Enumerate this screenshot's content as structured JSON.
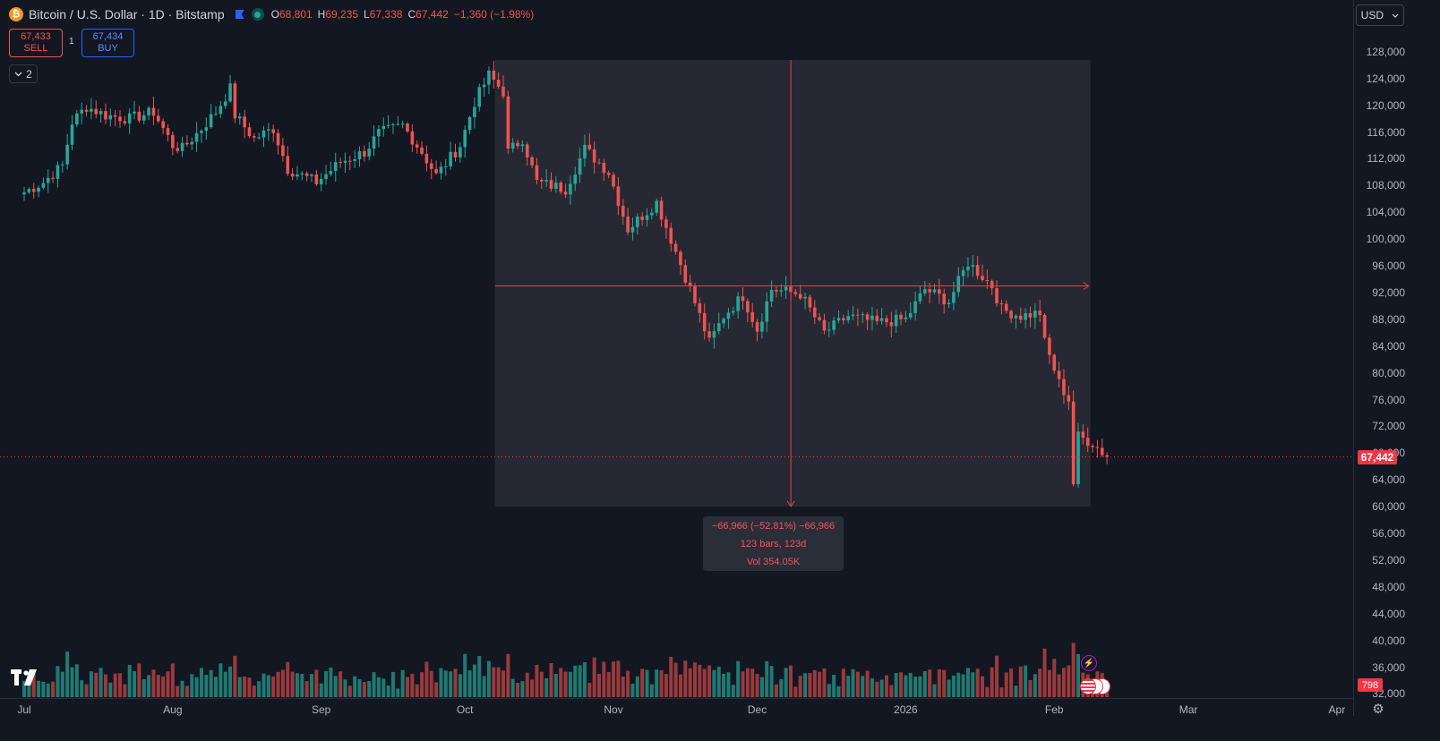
{
  "header": {
    "coin_glyph": "₿",
    "title": "Bitcoin / U.S. Dollar · 1D · Bitstamp",
    "open_label": "O",
    "open": "68,801",
    "high_label": "H",
    "high": "69,235",
    "low_label": "L",
    "low": "67,338",
    "close_label": "C",
    "close": "67,442",
    "change": "−1,360 (−1.98%)"
  },
  "trade": {
    "sell_price": "67,433",
    "sell_label": "SELL",
    "spread": "1",
    "buy_price": "67,434",
    "buy_label": "BUY"
  },
  "indicators_toggle": {
    "icon": "chevron-down-icon",
    "count": "2"
  },
  "currency_selector": {
    "value": "USD"
  },
  "price_axis": {
    "labels": [
      "128,000",
      "124,000",
      "120,000",
      "116,000",
      "112,000",
      "108,000",
      "104,000",
      "100,000",
      "96,000",
      "92,000",
      "88,000",
      "84,000",
      "80,000",
      "76,000",
      "72,000",
      "68,000",
      "64,000",
      "60,000",
      "56,000",
      "52,000",
      "48,000",
      "44,000",
      "40,000",
      "36,000",
      "32,000"
    ]
  },
  "last_price": "67,442",
  "volume_last": "798",
  "time_axis": {
    "labels": [
      "Jul",
      "Aug",
      "Sep",
      "Oct",
      "Nov",
      "Dec",
      "2026",
      "Feb",
      "Mar",
      "Apr"
    ]
  },
  "measure": {
    "line1": "−66,966 (−52.81%) −66,966",
    "line2": "123 bars, 123d",
    "line3": "Vol 354.05K"
  },
  "colors": {
    "background": "#131722",
    "up": "#26a69a",
    "down": "#ef5350",
    "volume_up": "#1f7a72",
    "volume_down": "#9a3a3d",
    "measure_zone": "#262933",
    "accent_blue": "#2962ff"
  },
  "chart_data": {
    "type": "candlestick",
    "symbol": "Bitcoin / U.S. Dollar",
    "interval": "1D",
    "exchange": "Bitstamp",
    "y_range": [
      32000,
      130000
    ],
    "x_range": [
      "2025-06-29",
      "2026-04-05"
    ],
    "anchors": [
      [
        "2025-07-01",
        107000
      ],
      [
        "2025-07-05",
        108500
      ],
      [
        "2025-07-09",
        111000
      ],
      [
        "2025-07-11",
        117500
      ],
      [
        "2025-07-14",
        119800
      ],
      [
        "2025-07-18",
        118500
      ],
      [
        "2025-07-23",
        118000
      ],
      [
        "2025-07-28",
        119000
      ],
      [
        "2025-08-01",
        114000
      ],
      [
        "2025-08-03",
        113500
      ],
      [
        "2025-08-07",
        116500
      ],
      [
        "2025-08-10",
        119000
      ],
      [
        "2025-08-13",
        122500
      ],
      [
        "2025-08-14",
        118500
      ],
      [
        "2025-08-18",
        115000
      ],
      [
        "2025-08-22",
        116500
      ],
      [
        "2025-08-25",
        110500
      ],
      [
        "2025-08-31",
        108500
      ],
      [
        "2025-09-05",
        111500
      ],
      [
        "2025-09-10",
        113000
      ],
      [
        "2025-09-13",
        115800
      ],
      [
        "2025-09-18",
        117000
      ],
      [
        "2025-09-22",
        113000
      ],
      [
        "2025-09-25",
        109500
      ],
      [
        "2025-09-30",
        114000
      ],
      [
        "2025-10-03",
        120500
      ],
      [
        "2025-10-06",
        124500
      ],
      [
        "2025-10-09",
        122000
      ],
      [
        "2025-10-10",
        113000
      ],
      [
        "2025-10-13",
        115000
      ],
      [
        "2025-10-16",
        108500
      ],
      [
        "2025-10-22",
        107500
      ],
      [
        "2025-10-26",
        113500
      ],
      [
        "2025-10-31",
        110000
      ],
      [
        "2025-11-04",
        101500
      ],
      [
        "2025-11-10",
        105500
      ],
      [
        "2025-11-13",
        100000
      ],
      [
        "2025-11-17",
        92500
      ],
      [
        "2025-11-21",
        84500
      ],
      [
        "2025-11-24",
        88500
      ],
      [
        "2025-11-28",
        91500
      ],
      [
        "2025-12-01",
        86500
      ],
      [
        "2025-12-04",
        92500
      ],
      [
        "2025-12-10",
        91800
      ],
      [
        "2025-12-15",
        86000
      ],
      [
        "2025-12-20",
        88500
      ],
      [
        "2025-12-26",
        87500
      ],
      [
        "2026-01-01",
        88000
      ],
      [
        "2026-01-05",
        92500
      ],
      [
        "2026-01-10",
        90700
      ],
      [
        "2026-01-14",
        96500
      ],
      [
        "2026-01-19",
        93000
      ],
      [
        "2026-01-21",
        89500
      ],
      [
        "2026-01-25",
        88500
      ],
      [
        "2026-01-29",
        89000
      ],
      [
        "2026-01-30",
        84500
      ],
      [
        "2026-02-02",
        78500
      ],
      [
        "2026-02-04",
        76000
      ],
      [
        "2026-02-05",
        63500
      ],
      [
        "2026-02-06",
        70500
      ],
      [
        "2026-02-09",
        69500
      ],
      [
        "2026-02-12",
        67442
      ]
    ],
    "volume_unit": "relative",
    "measure_tool": {
      "from_date": "2025-10-08",
      "to_date": "2026-02-08",
      "price_change": "−66,966",
      "percent_change": "−52.81%",
      "bars": 123,
      "volume": "354.05K"
    },
    "last_price": 67442,
    "grid": false
  }
}
